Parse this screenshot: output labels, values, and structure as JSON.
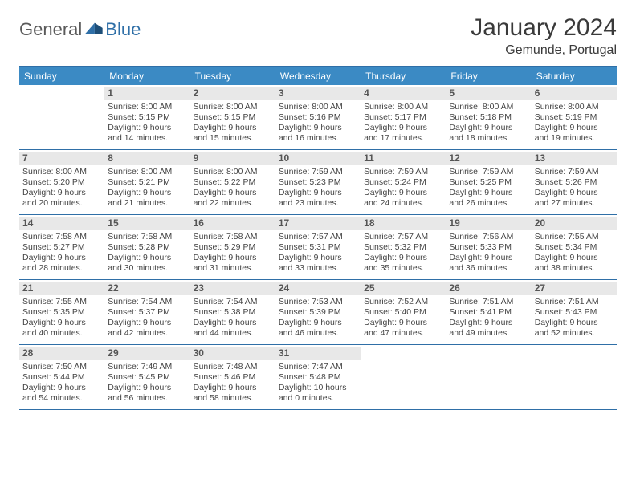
{
  "logo": {
    "part1": "General",
    "part2": "Blue"
  },
  "title": "January 2024",
  "location": "Gemunde, Portugal",
  "colors": {
    "header_bg": "#3b8ac4",
    "border": "#2f6fa7",
    "daynum_bg": "#e8e8e8",
    "text": "#444444",
    "title_text": "#3a3a3a"
  },
  "weekdays": [
    "Sunday",
    "Monday",
    "Tuesday",
    "Wednesday",
    "Thursday",
    "Friday",
    "Saturday"
  ],
  "weeks": [
    [
      null,
      {
        "d": "1",
        "sr": "8:00 AM",
        "ss": "5:15 PM",
        "dl": "9 hours and 14 minutes."
      },
      {
        "d": "2",
        "sr": "8:00 AM",
        "ss": "5:15 PM",
        "dl": "9 hours and 15 minutes."
      },
      {
        "d": "3",
        "sr": "8:00 AM",
        "ss": "5:16 PM",
        "dl": "9 hours and 16 minutes."
      },
      {
        "d": "4",
        "sr": "8:00 AM",
        "ss": "5:17 PM",
        "dl": "9 hours and 17 minutes."
      },
      {
        "d": "5",
        "sr": "8:00 AM",
        "ss": "5:18 PM",
        "dl": "9 hours and 18 minutes."
      },
      {
        "d": "6",
        "sr": "8:00 AM",
        "ss": "5:19 PM",
        "dl": "9 hours and 19 minutes."
      }
    ],
    [
      {
        "d": "7",
        "sr": "8:00 AM",
        "ss": "5:20 PM",
        "dl": "9 hours and 20 minutes."
      },
      {
        "d": "8",
        "sr": "8:00 AM",
        "ss": "5:21 PM",
        "dl": "9 hours and 21 minutes."
      },
      {
        "d": "9",
        "sr": "8:00 AM",
        "ss": "5:22 PM",
        "dl": "9 hours and 22 minutes."
      },
      {
        "d": "10",
        "sr": "7:59 AM",
        "ss": "5:23 PM",
        "dl": "9 hours and 23 minutes."
      },
      {
        "d": "11",
        "sr": "7:59 AM",
        "ss": "5:24 PM",
        "dl": "9 hours and 24 minutes."
      },
      {
        "d": "12",
        "sr": "7:59 AM",
        "ss": "5:25 PM",
        "dl": "9 hours and 26 minutes."
      },
      {
        "d": "13",
        "sr": "7:59 AM",
        "ss": "5:26 PM",
        "dl": "9 hours and 27 minutes."
      }
    ],
    [
      {
        "d": "14",
        "sr": "7:58 AM",
        "ss": "5:27 PM",
        "dl": "9 hours and 28 minutes."
      },
      {
        "d": "15",
        "sr": "7:58 AM",
        "ss": "5:28 PM",
        "dl": "9 hours and 30 minutes."
      },
      {
        "d": "16",
        "sr": "7:58 AM",
        "ss": "5:29 PM",
        "dl": "9 hours and 31 minutes."
      },
      {
        "d": "17",
        "sr": "7:57 AM",
        "ss": "5:31 PM",
        "dl": "9 hours and 33 minutes."
      },
      {
        "d": "18",
        "sr": "7:57 AM",
        "ss": "5:32 PM",
        "dl": "9 hours and 35 minutes."
      },
      {
        "d": "19",
        "sr": "7:56 AM",
        "ss": "5:33 PM",
        "dl": "9 hours and 36 minutes."
      },
      {
        "d": "20",
        "sr": "7:55 AM",
        "ss": "5:34 PM",
        "dl": "9 hours and 38 minutes."
      }
    ],
    [
      {
        "d": "21",
        "sr": "7:55 AM",
        "ss": "5:35 PM",
        "dl": "9 hours and 40 minutes."
      },
      {
        "d": "22",
        "sr": "7:54 AM",
        "ss": "5:37 PM",
        "dl": "9 hours and 42 minutes."
      },
      {
        "d": "23",
        "sr": "7:54 AM",
        "ss": "5:38 PM",
        "dl": "9 hours and 44 minutes."
      },
      {
        "d": "24",
        "sr": "7:53 AM",
        "ss": "5:39 PM",
        "dl": "9 hours and 46 minutes."
      },
      {
        "d": "25",
        "sr": "7:52 AM",
        "ss": "5:40 PM",
        "dl": "9 hours and 47 minutes."
      },
      {
        "d": "26",
        "sr": "7:51 AM",
        "ss": "5:41 PM",
        "dl": "9 hours and 49 minutes."
      },
      {
        "d": "27",
        "sr": "7:51 AM",
        "ss": "5:43 PM",
        "dl": "9 hours and 52 minutes."
      }
    ],
    [
      {
        "d": "28",
        "sr": "7:50 AM",
        "ss": "5:44 PM",
        "dl": "9 hours and 54 minutes."
      },
      {
        "d": "29",
        "sr": "7:49 AM",
        "ss": "5:45 PM",
        "dl": "9 hours and 56 minutes."
      },
      {
        "d": "30",
        "sr": "7:48 AM",
        "ss": "5:46 PM",
        "dl": "9 hours and 58 minutes."
      },
      {
        "d": "31",
        "sr": "7:47 AM",
        "ss": "5:48 PM",
        "dl": "10 hours and 0 minutes."
      },
      null,
      null,
      null
    ]
  ],
  "labels": {
    "sunrise": "Sunrise:",
    "sunset": "Sunset:",
    "daylight": "Daylight:"
  }
}
